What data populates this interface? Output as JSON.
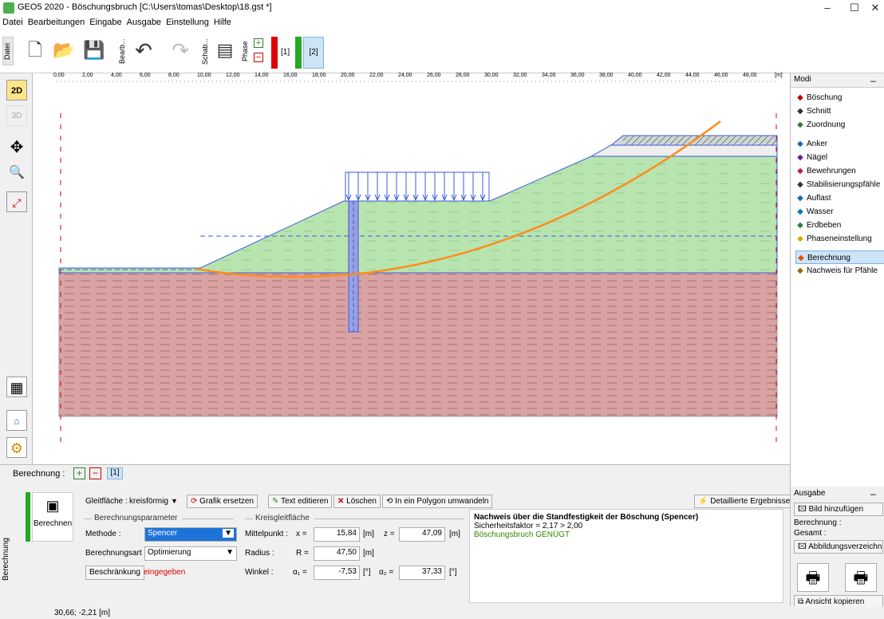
{
  "window": {
    "title": "GEO5 2020 - Böschungsbruch [C:\\Users\\tomas\\Desktop\\18.gst *]",
    "minimize": "–",
    "maximize": "☐",
    "close": "✕"
  },
  "menu": [
    "Datei",
    "Bearbeitungen",
    "Eingabe",
    "Ausgabe",
    "Einstellung",
    "Hilfe"
  ],
  "toolbar": {
    "datei_label": "Datei",
    "bearb_label": "Bearb...",
    "schab_label": "Schab...",
    "phase_label": "Phase",
    "phase1": "[1]",
    "phase2": "[2]"
  },
  "left_tools": {
    "view2d": "2D",
    "view3d": "3D"
  },
  "ruler": {
    "ticks": [
      "0,00",
      "2,00",
      "4,00",
      "6,00",
      "8,00",
      "10,00",
      "12,00",
      "14,00",
      "16,00",
      "18,00",
      "20,00",
      "22,00",
      "24,00",
      "26,00",
      "28,00",
      "30,00",
      "32,00",
      "34,00",
      "36,00",
      "38,00",
      "40,00",
      "42,00",
      "44,00",
      "46,00",
      "48,00"
    ],
    "unit": "[m]"
  },
  "modi": {
    "title": "Modi",
    "items": [
      {
        "label": "Böschung",
        "icon": "slope-icon",
        "color": "#c00000"
      },
      {
        "label": "Schnitt",
        "icon": "cut-icon",
        "color": "#333333"
      },
      {
        "label": "Zuordnung",
        "icon": "assign-icon",
        "color": "#2e7d32"
      },
      {
        "label": "Anker",
        "icon": "anchor-icon",
        "color": "#1565c0"
      },
      {
        "label": "Nägel",
        "icon": "nail-icon",
        "color": "#6a1b9a"
      },
      {
        "label": "Bewehrungen",
        "icon": "reinforcement-icon",
        "color": "#c2185b"
      },
      {
        "label": "Stabilisierungspfähle",
        "icon": "pile-icon",
        "color": "#333333"
      },
      {
        "label": "Auflast",
        "icon": "surcharge-icon",
        "color": "#1565c0"
      },
      {
        "label": "Wasser",
        "icon": "water-icon",
        "color": "#0277bd"
      },
      {
        "label": "Erdbeben",
        "icon": "earthquake-icon",
        "color": "#2e7d32"
      },
      {
        "label": "Phaseneinstellung",
        "icon": "phase-settings-icon",
        "color": "#e6a800"
      },
      {
        "label": "Berechnung",
        "icon": "calculation-icon",
        "color": "#e65100",
        "active": true
      },
      {
        "label": "Nachweis für Pfähle",
        "icon": "pile-check-icon",
        "color": "#8d6e00"
      }
    ]
  },
  "bottom": {
    "berechnung_label": "Berechnung :",
    "stage": "[1]",
    "side_tab": "Berechnung",
    "berechnen": "Berechnen",
    "gleitflaeche_label": "Gleitfläche :",
    "gleitflaeche_value": "kreisförmig",
    "grafik_ersetzen": "Grafik ersetzen",
    "text_editieren": "Text editieren",
    "loeschen": "Löschen",
    "polygon": "In ein Polygon umwandeln",
    "detail": "Detaillierte Ergebnisse",
    "params_title": "Berechnungsparameter",
    "methode_label": "Methode :",
    "methode_value": "Spencer",
    "art_label": "Berechnungsart :",
    "art_value": "Optimierung",
    "beschraenkung": "Beschränkung",
    "eingegeben": "eingegeben",
    "kreis_title": "Kreisgleitfläche",
    "mittelpunkt_label": "Mittelpunkt :",
    "x_label": "x =",
    "x_value": "15,84",
    "x_unit": "[m]",
    "z_label": "z =",
    "z_value": "47,09",
    "z_unit": "[m]",
    "radius_label": "Radius :",
    "r_label": "R =",
    "r_value": "47,50",
    "r_unit": "[m]",
    "winkel_label": "Winkel :",
    "a1_label": "α₁ =",
    "a1_value": "-7,53",
    "a1_unit": "[°]",
    "a2_label": "α₂ =",
    "a2_value": "37,33",
    "a2_unit": "[°]"
  },
  "results": {
    "heading": "Nachweis über die Standfestigkeit der Böschung (Spencer)",
    "factor": "Sicherheitsfaktor = 2,17 > 2,00",
    "verdict": "Böschungsbruch GENÜGT",
    "verdict_color": "#2e8b00"
  },
  "ausgabe": {
    "title": "Ausgabe",
    "bild_hinzufuegen": "Bild hinzufügen",
    "berechnung_count": "Berechnung :",
    "gesamt": "Gesamt :",
    "abbildungsverzeichnis": "Abbildungsverzeichnis",
    "ansicht_kopieren": "Ansicht kopieren"
  },
  "status": {
    "coords": "30,66; -2,21 [m]"
  }
}
